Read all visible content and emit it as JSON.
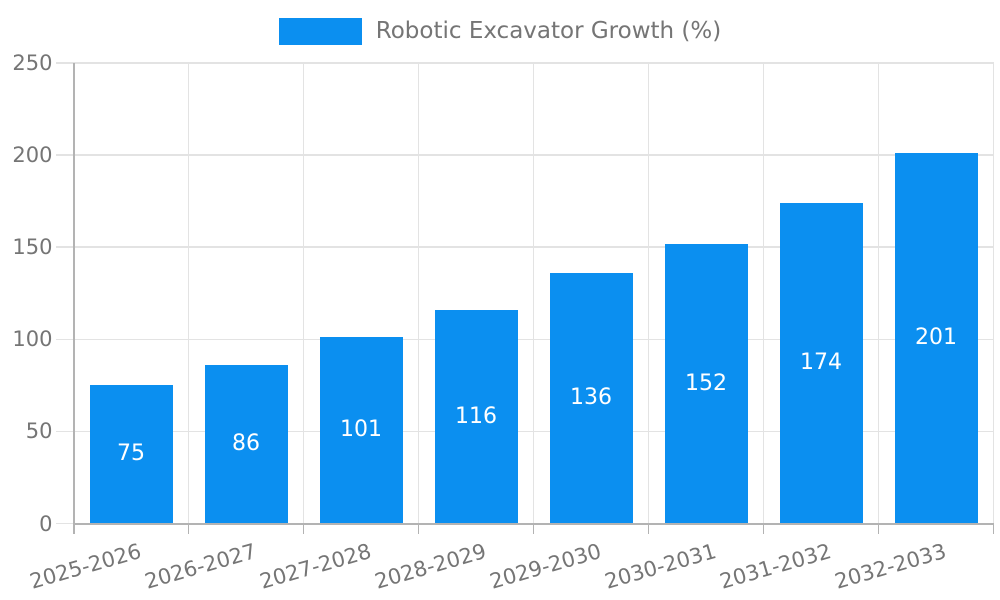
{
  "chart_data": {
    "type": "bar",
    "title": "",
    "legend": {
      "label": "Robotic Excavator Growth (%)",
      "position": "top-center"
    },
    "categories": [
      "2025-2026",
      "2026-2027",
      "2027-2028",
      "2028-2029",
      "2029-2030",
      "2030-2031",
      "2031-2032",
      "2032-2033"
    ],
    "series": [
      {
        "name": "Robotic Excavator Growth (%)",
        "values": [
          75,
          86,
          101,
          116,
          136,
          152,
          174,
          201
        ]
      }
    ],
    "bar_value_labels": [
      "75",
      "86",
      "101",
      "116",
      "136",
      "152",
      "174",
      "201"
    ],
    "xlabel": "",
    "ylabel": "",
    "ylim": [
      0,
      250
    ],
    "yticks": [
      0,
      50,
      100,
      150,
      200,
      250
    ],
    "grid": true,
    "colors": {
      "bar": "#0b8ff0",
      "bar_label": "#ffffff",
      "axis_text": "#757575",
      "gridline": "#e3e3e3",
      "axis_line": "#b3b3b3",
      "background": "#ffffff"
    }
  }
}
